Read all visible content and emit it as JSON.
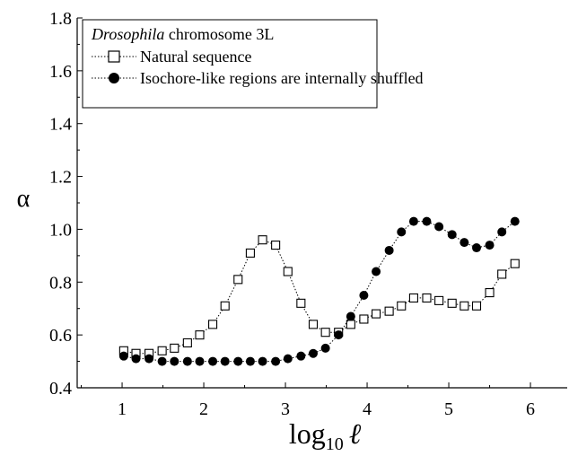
{
  "chart_data": {
    "type": "line",
    "title": "",
    "xlabel": "log",
    "xlabel_subscript": "10",
    "xlabel_symbol": "ℓ",
    "ylabel": "α",
    "xlim": [
      0.45,
      6.45
    ],
    "ylim": [
      0.4,
      1.8
    ],
    "xticks": [
      1,
      2,
      3,
      4,
      5,
      6
    ],
    "yticks": [
      0.4,
      0.6,
      0.8,
      1.0,
      1.2,
      1.4,
      1.6,
      1.8
    ],
    "xtick_labels": [
      "1",
      "2",
      "3",
      "4",
      "5",
      "6"
    ],
    "ytick_labels": [
      "0.4",
      "0.6",
      "0.8",
      "1.0",
      "1.2",
      "1.4",
      "1.6",
      "1.8"
    ],
    "grid": false,
    "legend": {
      "placement": "top-left",
      "title_italic": "Drosophila",
      "title_rest": " chromosome 3L"
    },
    "series": [
      {
        "name": "Natural sequence",
        "marker": "open-square",
        "color": "#000000",
        "x": [
          1.02,
          1.17,
          1.33,
          1.49,
          1.64,
          1.8,
          1.95,
          2.11,
          2.26,
          2.42,
          2.57,
          2.72,
          2.88,
          3.03,
          3.19,
          3.34,
          3.49,
          3.65,
          3.8,
          3.96,
          4.11,
          4.27,
          4.42,
          4.57,
          4.73,
          4.88,
          5.04,
          5.19,
          5.34,
          5.5,
          5.65,
          5.81
        ],
        "y": [
          0.54,
          0.53,
          0.53,
          0.54,
          0.55,
          0.57,
          0.6,
          0.64,
          0.71,
          0.81,
          0.91,
          0.96,
          0.94,
          0.84,
          0.72,
          0.64,
          0.61,
          0.61,
          0.64,
          0.66,
          0.68,
          0.69,
          0.71,
          0.74,
          0.74,
          0.73,
          0.72,
          0.71,
          0.71,
          0.76,
          0.83,
          0.87
        ]
      },
      {
        "name": "Isochore-like regions are internally shuffled",
        "marker": "filled-circle",
        "color": "#000000",
        "x": [
          1.02,
          1.17,
          1.33,
          1.49,
          1.64,
          1.8,
          1.95,
          2.11,
          2.26,
          2.42,
          2.57,
          2.72,
          2.88,
          3.03,
          3.19,
          3.34,
          3.49,
          3.65,
          3.8,
          3.96,
          4.11,
          4.27,
          4.42,
          4.57,
          4.73,
          4.88,
          5.04,
          5.19,
          5.34,
          5.5,
          5.65,
          5.81
        ],
        "y": [
          0.52,
          0.51,
          0.51,
          0.5,
          0.5,
          0.5,
          0.5,
          0.5,
          0.5,
          0.5,
          0.5,
          0.5,
          0.5,
          0.51,
          0.52,
          0.53,
          0.55,
          0.6,
          0.67,
          0.75,
          0.84,
          0.92,
          0.99,
          1.03,
          1.03,
          1.01,
          0.98,
          0.95,
          0.93,
          0.94,
          0.99,
          1.03
        ]
      }
    ]
  }
}
